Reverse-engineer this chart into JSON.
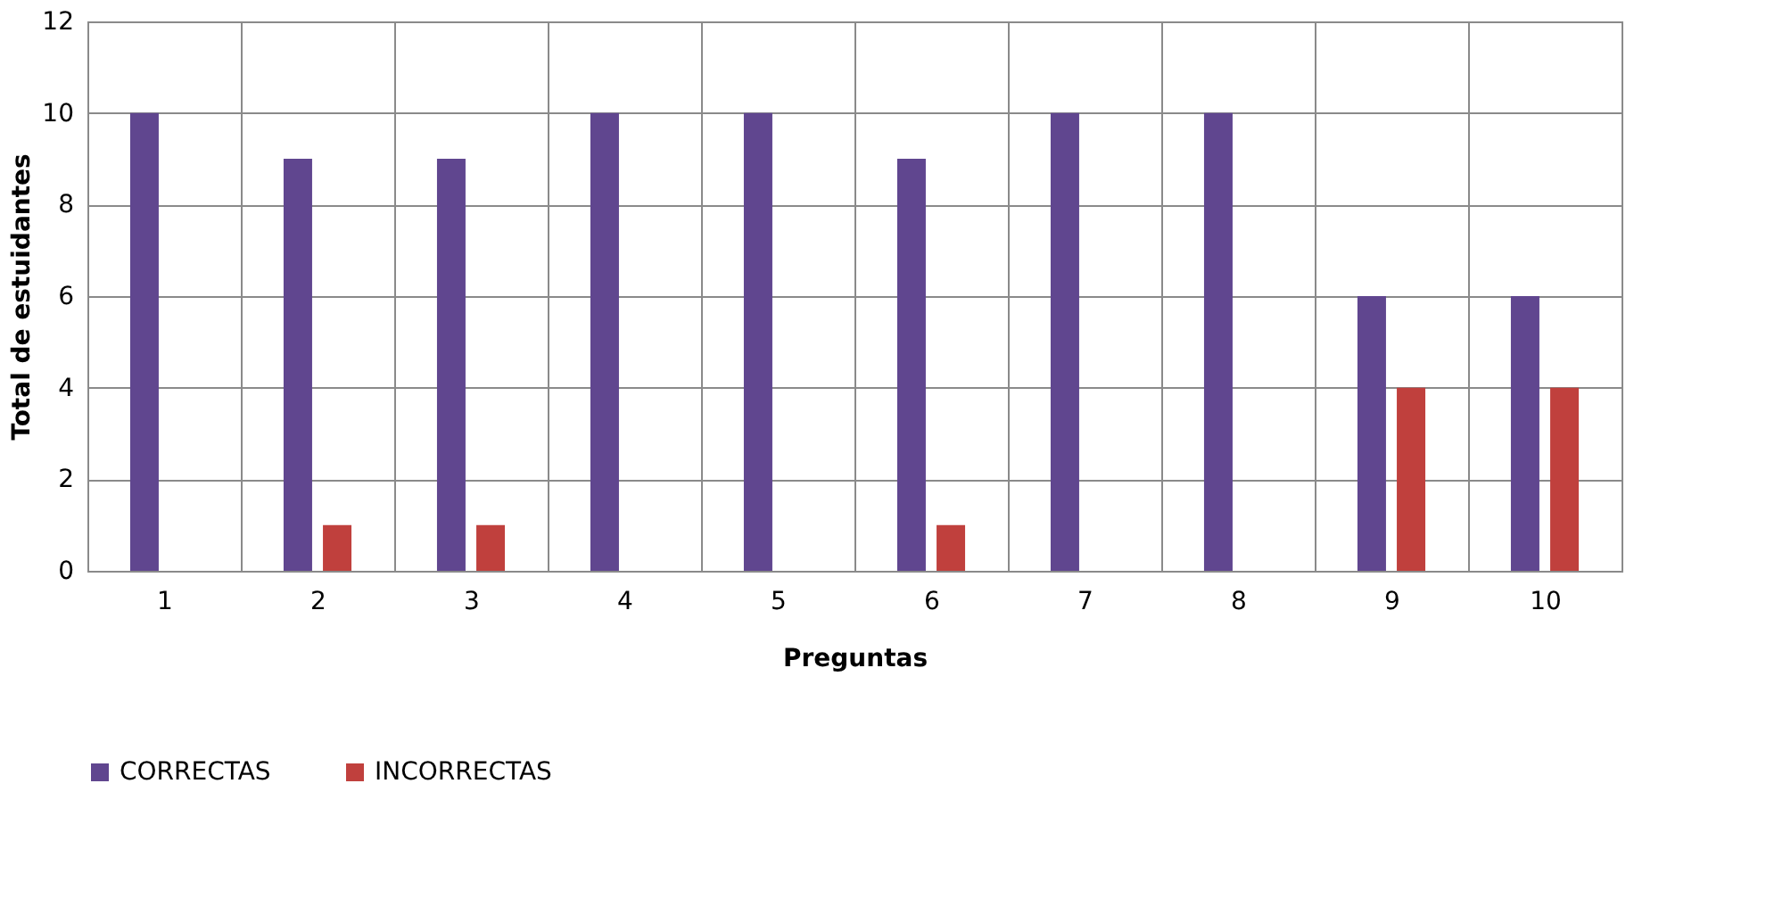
{
  "chart_data": {
    "type": "bar",
    "xlabel": "Preguntas",
    "ylabel": "Total de estuidantes",
    "categories": [
      "1",
      "2",
      "3",
      "4",
      "5",
      "6",
      "7",
      "8",
      "9",
      "10"
    ],
    "series": [
      {
        "name": "CORRECTAS",
        "color": "#60468f",
        "values": [
          10,
          9,
          9,
          10,
          10,
          9,
          10,
          10,
          6,
          6
        ]
      },
      {
        "name": "INCORRECTAS",
        "color": "#c0403d",
        "values": [
          0,
          1,
          1,
          0,
          0,
          1,
          0,
          0,
          4,
          4
        ]
      }
    ],
    "ylim": [
      0,
      12
    ],
    "yticks": [
      0,
      2,
      4,
      6,
      8,
      10,
      12
    ],
    "grid": true,
    "legend": "bottom"
  }
}
